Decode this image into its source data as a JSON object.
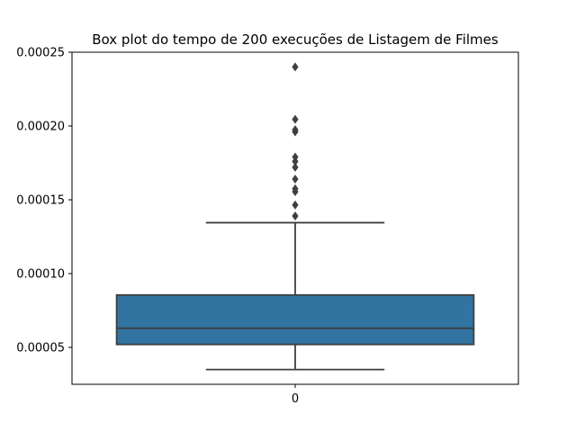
{
  "chart_data": {
    "type": "box",
    "title": "Box plot do tempo de 200 execuções de Listagem de Filmes",
    "xlabel": "",
    "ylabel": "",
    "categories": [
      "0"
    ],
    "ylim": [
      2.5e-05,
      0.00025
    ],
    "yticks": [
      5e-05,
      0.0001,
      0.00015,
      0.0002,
      0.00025
    ],
    "ytick_labels": [
      "0.00005",
      "0.00010",
      "0.00015",
      "0.00020",
      "0.00025"
    ],
    "grid": false,
    "series": [
      {
        "category": "0",
        "whisker_low": 3.5e-05,
        "q1": 5.2e-05,
        "median": 6.3e-05,
        "q3": 8.55e-05,
        "whisker_high": 0.0001345,
        "outliers": [
          0.000139,
          0.0001465,
          0.0001555,
          0.0001575,
          0.000164,
          0.000172,
          0.000176,
          0.000179,
          0.000196,
          0.0001975,
          0.0002045,
          0.00024
        ]
      }
    ],
    "colors": {
      "box_fill": "#3274a1",
      "line": "#3f3f3f",
      "axis": "#000000"
    }
  }
}
